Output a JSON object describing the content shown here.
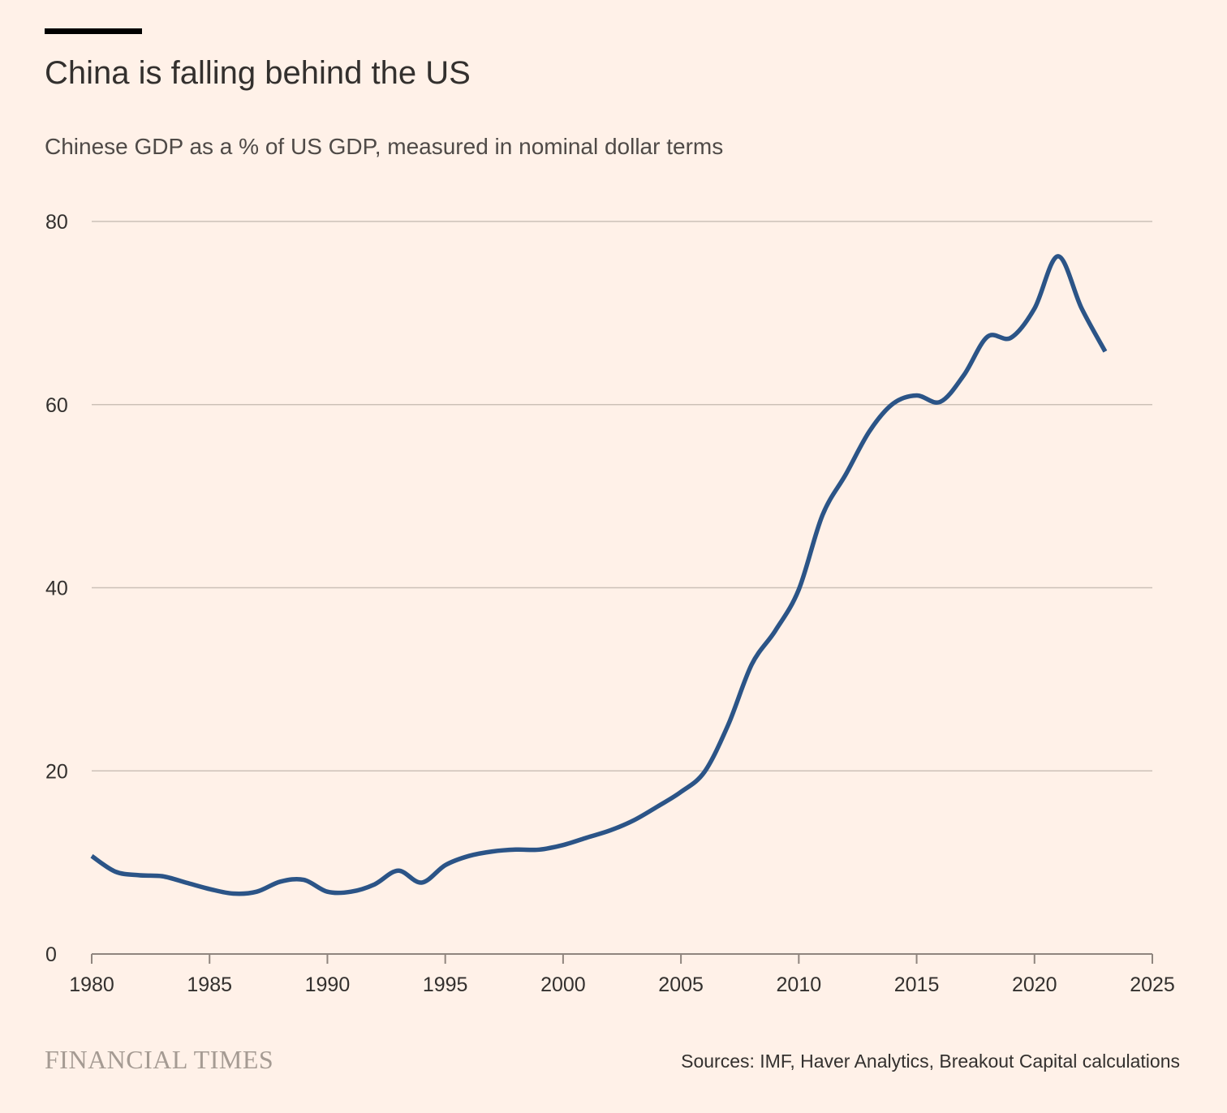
{
  "header": {
    "title": "China is falling behind the US",
    "subtitle": "Chinese GDP as a % of US GDP, measured in nominal dollar terms"
  },
  "footer": {
    "brand": "FINANCIAL TIMES",
    "source": "Sources: IMF, Haver Analytics, Breakout Capital calculations"
  },
  "colors": {
    "background": "#fff1e8",
    "line": "#2b5487",
    "grid": "#ccc1b7",
    "text": "#33302e",
    "brand": "#a59b93"
  },
  "chart_data": {
    "type": "line",
    "title": "China is falling behind the US",
    "subtitle": "Chinese GDP as a % of US GDP, measured in nominal dollar terms",
    "xlabel": "",
    "ylabel": "",
    "xlim": [
      1980,
      2025
    ],
    "ylim": [
      0,
      80
    ],
    "x_ticks": [
      1980,
      1985,
      1990,
      1995,
      2000,
      2005,
      2010,
      2015,
      2020,
      2025
    ],
    "y_ticks": [
      0,
      20,
      40,
      60,
      80
    ],
    "grid": "horizontal",
    "legend": "none",
    "series": [
      {
        "x": [
          1980,
          1981,
          1982,
          1983,
          1984,
          1985,
          1986,
          1987,
          1988,
          1989,
          1990,
          1991,
          1992,
          1993,
          1994,
          1995,
          1996,
          1997,
          1998,
          1999,
          2000,
          2001,
          2002,
          2003,
          2004,
          2005,
          2006,
          2007,
          2008,
          2009,
          2010,
          2011,
          2012,
          2013,
          2014,
          2015,
          2016,
          2017,
          2018,
          2019,
          2020,
          2021,
          2022,
          2023
        ],
        "values": [
          10.7,
          9.0,
          8.6,
          8.5,
          7.8,
          7.1,
          6.6,
          6.8,
          7.9,
          8.1,
          6.8,
          6.8,
          7.6,
          9.1,
          7.8,
          9.7,
          10.7,
          11.2,
          11.4,
          11.4,
          11.9,
          12.7,
          13.5,
          14.6,
          16.1,
          17.7,
          19.9,
          25.0,
          31.6,
          35.3,
          39.8,
          47.9,
          52.4,
          57.1,
          60.1,
          61.0,
          60.3,
          63.2,
          67.4,
          67.3,
          70.5,
          76.2,
          70.5,
          65.8
        ]
      }
    ]
  }
}
